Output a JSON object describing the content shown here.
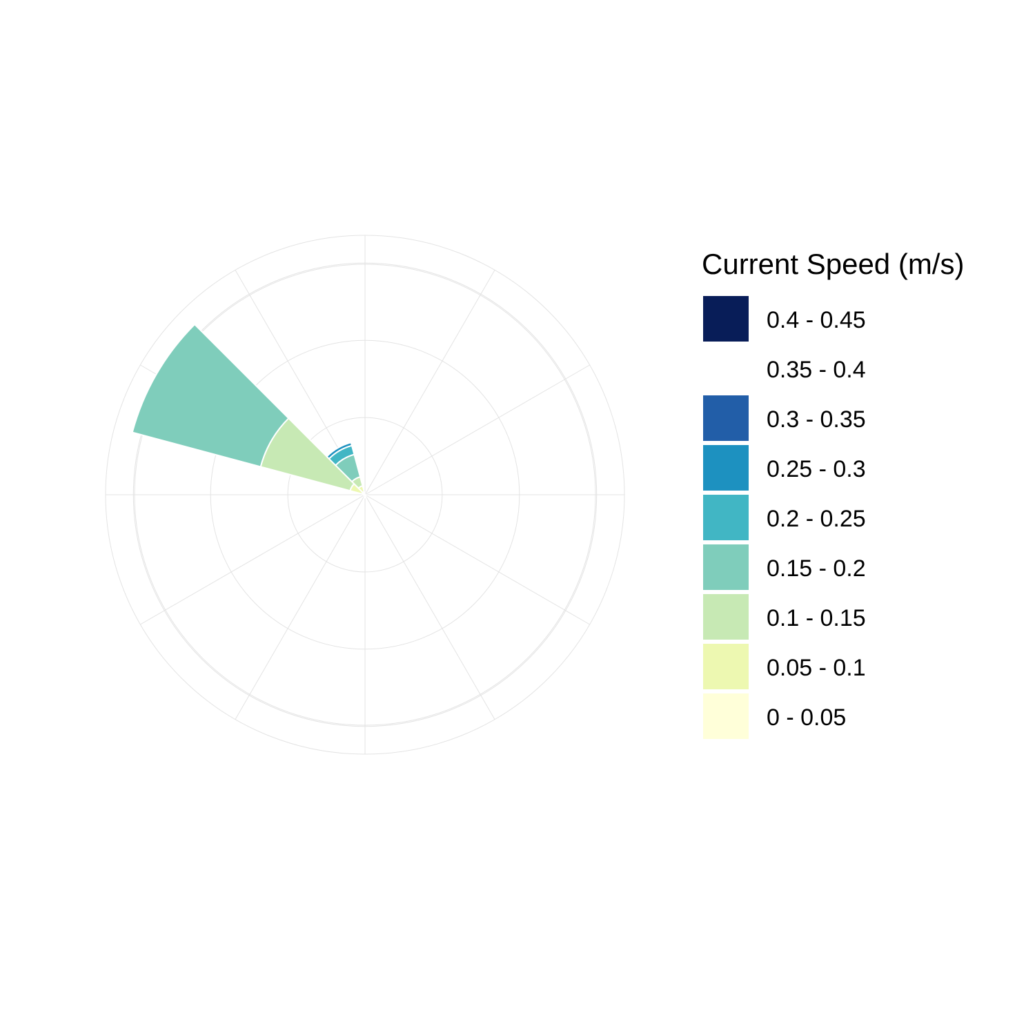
{
  "chart_data": {
    "type": "wind_rose",
    "title": "",
    "direction_bins": 12,
    "radial_max": 0.168,
    "radial_grid": [
      0.05,
      0.1,
      0.15
    ],
    "legend": {
      "title": "Current Speed (m/s)",
      "placement": "right"
    },
    "speed_bins": [
      {
        "label": "0.4 - 0.45",
        "color": "#081d58"
      },
      {
        "label": "0.35 - 0.4",
        "color": "#ffffff"
      },
      {
        "label": "0.3 - 0.35",
        "color": "#225ea8"
      },
      {
        "label": "0.25 - 0.3",
        "color": "#1d91c0"
      },
      {
        "label": "0.2 - 0.25",
        "color": "#41b6c4"
      },
      {
        "label": "0.15 - 0.2",
        "color": "#7fcdbb"
      },
      {
        "label": "0.1 - 0.15",
        "color": "#c7e9b4"
      },
      {
        "label": "0.05 - 0.1",
        "color": "#edf8b1"
      },
      {
        "label": "0 - 0.05",
        "color": "#ffffd9"
      }
    ],
    "series": [
      {
        "direction_deg": 300,
        "segments": [
          {
            "bin": "0 - 0.05",
            "value": 0.002
          },
          {
            "bin": "0.05 - 0.1",
            "value": 0.008
          },
          {
            "bin": "0.1 - 0.15",
            "value": 0.06
          },
          {
            "bin": "0.15 - 0.2",
            "value": 0.086
          }
        ]
      },
      {
        "direction_deg": 330,
        "segments": [
          {
            "bin": "0 - 0.05",
            "value": 0.002
          },
          {
            "bin": "0.05 - 0.1",
            "value": 0.004
          },
          {
            "bin": "0.1 - 0.15",
            "value": 0.006
          },
          {
            "bin": "0.15 - 0.2",
            "value": 0.015
          },
          {
            "bin": "0.2 - 0.25",
            "value": 0.006
          },
          {
            "bin": "0.25 - 0.3",
            "value": 0.002
          }
        ]
      },
      {
        "direction_deg": 270,
        "segments": [
          {
            "bin": "0.2 - 0.25",
            "value": 0.001
          }
        ]
      },
      {
        "direction_deg": 180,
        "segments": [
          {
            "bin": "0.2 - 0.25",
            "value": 0.002
          }
        ]
      }
    ]
  }
}
